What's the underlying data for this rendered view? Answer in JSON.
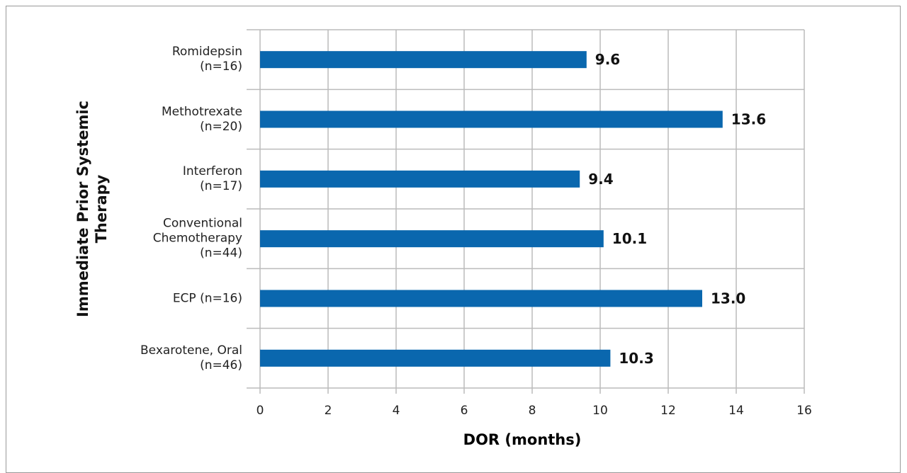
{
  "chart_data": {
    "type": "bar",
    "orientation": "horizontal",
    "x_label": "DOR (months)",
    "y_label": "Immediate Prior Systemic\nTherapy",
    "categories": [
      "Romidepsin\n(n=16)",
      "Methotrexate\n(n=20)",
      "Interferon\n(n=17)",
      "Conventional\nChemotherapy\n(n=44)",
      "ECP (n=16)",
      "Bexarotene, Oral\n(n=46)"
    ],
    "values": [
      9.6,
      13.6,
      9.4,
      10.1,
      13.0,
      10.3
    ],
    "value_labels": [
      "9.6",
      "13.6",
      "9.4",
      "10.1",
      "13.0",
      "10.3"
    ],
    "color": "#0a67ae",
    "xlim": [
      0,
      16
    ],
    "xticks": [
      0,
      2,
      4,
      6,
      8,
      10,
      12,
      14,
      16
    ],
    "grid": true
  }
}
